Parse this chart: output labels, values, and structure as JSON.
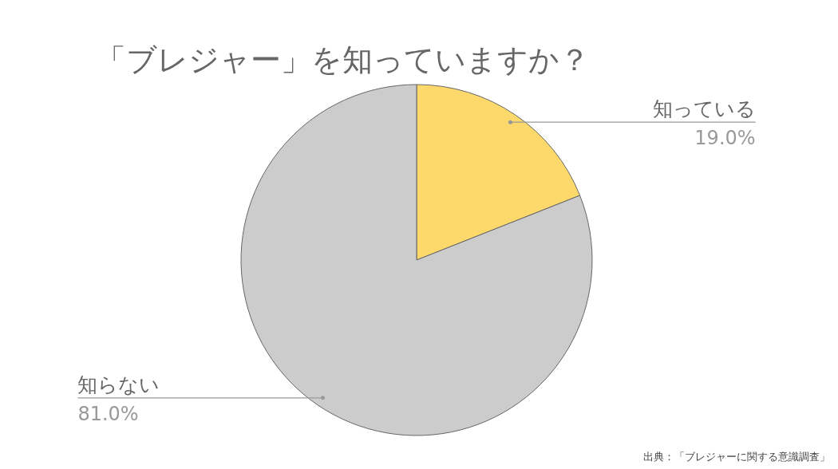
{
  "chart_data": {
    "type": "pie",
    "title": "「ブレジャー」を知っていますか？",
    "categories": [
      "知っている",
      "知らない"
    ],
    "values": [
      19.0,
      81.0
    ],
    "colors": [
      "#fdd86b",
      "#cccccc"
    ],
    "value_labels": [
      "19.0%",
      "81.0%"
    ],
    "annotations": [
      "出典：「ブレジャーに関する意識調査」"
    ]
  }
}
